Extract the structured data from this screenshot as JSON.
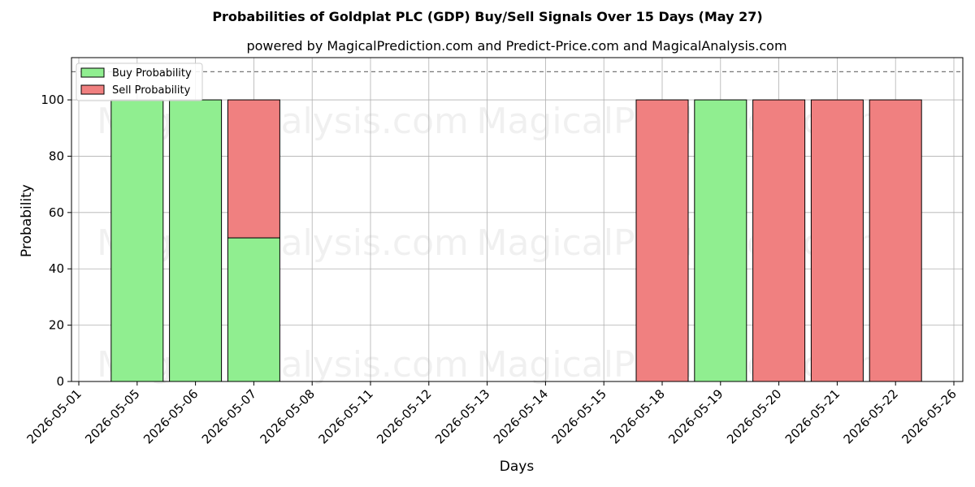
{
  "chart_data": {
    "type": "bar",
    "title": "Probabilities of Goldplat PLC (GDP) Buy/Sell Signals Over 15 Days (May 27)",
    "subtitle": "powered by MagicalPrediction.com and Predict-Price.com and MagicalAnalysis.com",
    "xlabel": "Days",
    "ylabel": "Probability",
    "ylim": [
      0,
      115
    ],
    "yticks": [
      0,
      20,
      40,
      60,
      80,
      100
    ],
    "threshold_line": 110,
    "grid": true,
    "stacked": true,
    "legend_position": "top-left",
    "categories": [
      "2026-05-01",
      "2026-05-05",
      "2026-05-06",
      "2026-05-07",
      "2026-05-08",
      "2026-05-11",
      "2026-05-12",
      "2026-05-13",
      "2026-05-14",
      "2026-05-15",
      "2026-05-18",
      "2026-05-19",
      "2026-05-20",
      "2026-05-21",
      "2026-05-22",
      "2026-05-26"
    ],
    "series": [
      {
        "name": "Buy Probability",
        "color": "#90ee90",
        "values": [
          0,
          100,
          100,
          51,
          0,
          0,
          0,
          0,
          0,
          0,
          0,
          100,
          0,
          0,
          0,
          0
        ]
      },
      {
        "name": "Sell Probability",
        "color": "#f08080",
        "values": [
          0,
          0,
          0,
          49,
          0,
          0,
          0,
          0,
          0,
          0,
          100,
          0,
          100,
          100,
          100,
          0
        ]
      }
    ],
    "watermarks": [
      "MagicalAnalysis.com",
      "MagicalPrediction.com"
    ]
  }
}
